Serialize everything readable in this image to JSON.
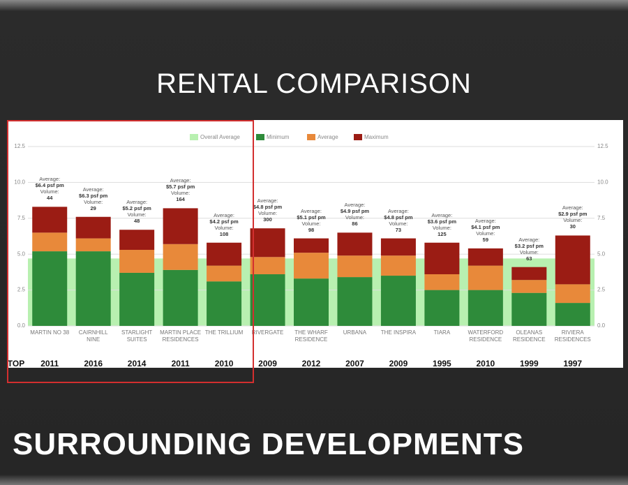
{
  "header": {
    "title": "RENTAL COMPARISON"
  },
  "footer": {
    "title": "SURROUNDING DEVELOPMENTS"
  },
  "chart_data": {
    "type": "stacked_bar",
    "categories": [
      "MARTIN NO 38",
      "CAIRNHILL NINE",
      "STARLIGHT SUITES",
      "MARTIN PLACE RESIDENCES",
      "THE TRILLIUM",
      "RIVERGATE",
      "THE WHARF RESIDENCE",
      "URBANA",
      "THE INSPIRA",
      "TIARA",
      "WATERFORD RESIDENCE",
      "OLEANAS RESIDENCE",
      "RIVIERA RESIDENCES"
    ],
    "overall_average": {
      "name": "Overall Average",
      "color": "#b8f0b0",
      "value": 4.7
    },
    "series": [
      {
        "name": "Minimum",
        "color": "#2e8b3a",
        "values": [
          5.2,
          5.2,
          3.7,
          3.9,
          3.1,
          3.6,
          3.3,
          3.4,
          3.5,
          2.5,
          2.5,
          2.3,
          1.6
        ]
      },
      {
        "name": "Average",
        "color": "#e8893a",
        "values": [
          1.3,
          0.9,
          1.6,
          1.8,
          1.1,
          1.2,
          1.8,
          1.5,
          1.4,
          1.1,
          1.7,
          0.9,
          1.3
        ]
      },
      {
        "name": "Maximum",
        "color": "#9b1c14",
        "values": [
          1.8,
          1.5,
          1.4,
          2.5,
          1.6,
          2.0,
          1.0,
          1.6,
          1.2,
          2.2,
          1.2,
          0.9,
          3.4
        ]
      }
    ],
    "annotation_average_label": "Average:",
    "annotation_volume_label": "Volume:",
    "annotation_average": [
      "$6.4 psf pm",
      "$6.3 psf pm",
      "$5.2 psf pm",
      "$5.7 psf pm",
      "$4.2 psf pm",
      "$4.8 psf pm",
      "$5.1 psf pm",
      "$4.9 psf pm",
      "$4.8 psf pm",
      "$3.6 psf pm",
      "$4.1 psf pm",
      "$3.2 psf pm",
      "$2.9 psf pm"
    ],
    "annotation_volume": [
      "44",
      "29",
      "48",
      "164",
      "108",
      "300",
      "98",
      "86",
      "73",
      "125",
      "59",
      "63",
      "30"
    ],
    "top_label": "TOP",
    "top_years": [
      "2011",
      "2016",
      "2014",
      "2011",
      "2010",
      "2009",
      "2012",
      "2007",
      "2009",
      "1995",
      "2010",
      "1999",
      "1997"
    ],
    "ylim": [
      0,
      12.5
    ],
    "yticks": [
      {
        "value": 0,
        "label": "0.0"
      },
      2.5,
      {
        "value": 5,
        "label": "5.0"
      },
      7.5,
      {
        "value": 10,
        "label": "10.0"
      },
      12.5
    ],
    "grid": true
  }
}
